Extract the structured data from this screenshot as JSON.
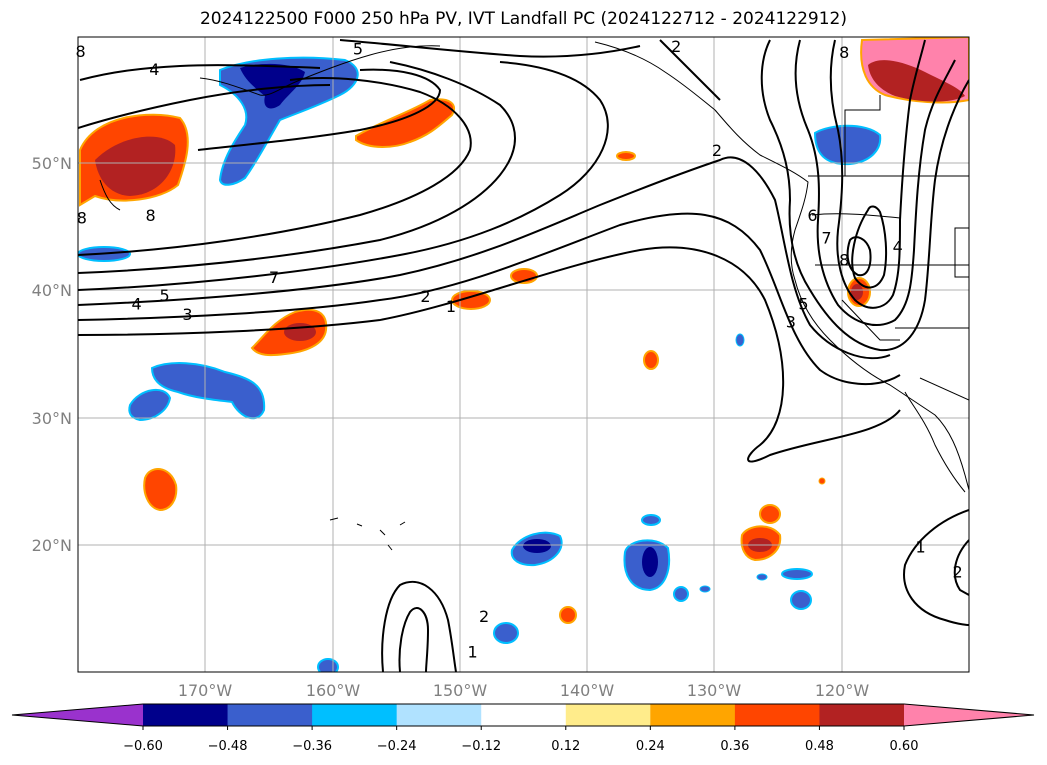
{
  "title": "2024122500 F000 250 hPa PV, IVT Landfall PC (2024122712 - 2024122912)",
  "map": {
    "projection": "PlateCarree",
    "lon_range": [
      -180,
      -110
    ],
    "lat_range": [
      10,
      60
    ],
    "grid": true,
    "lat_ticks": [
      {
        "value": 50,
        "label": "50°N"
      },
      {
        "value": 40,
        "label": "40°N"
      },
      {
        "value": 30,
        "label": "30°N"
      },
      {
        "value": 20,
        "label": "20°N"
      }
    ],
    "lon_ticks": [
      {
        "value": -170,
        "label": "170°W"
      },
      {
        "value": -160,
        "label": "160°W"
      },
      {
        "value": -150,
        "label": "150°W"
      },
      {
        "value": -140,
        "label": "140°W"
      },
      {
        "value": -130,
        "label": "130°W"
      },
      {
        "value": -120,
        "label": "120°W"
      }
    ]
  },
  "colorbar": {
    "orientation": "horizontal",
    "extend": "both",
    "levels": [
      -0.6,
      -0.48,
      -0.36,
      -0.24,
      -0.12,
      0.12,
      0.24,
      0.36,
      0.48,
      0.6
    ],
    "tick_labels": [
      "−0.60",
      "−0.48",
      "−0.36",
      "−0.24",
      "−0.12",
      "0.12",
      "0.24",
      "0.36",
      "0.48",
      "0.60"
    ],
    "colors": [
      "#9a32cd",
      "#00008b",
      "#3a5fcd",
      "#00bfff",
      "#b0e2ff",
      "#ffffff",
      "#ffec8b",
      "#ffa500",
      "#ff4500",
      "#b22222",
      "#ff82ab"
    ]
  },
  "contour_labels": [
    {
      "text": "4",
      "lon": -174,
      "lat": 57.5
    },
    {
      "text": "5",
      "lon": -158,
      "lat": 59.1
    },
    {
      "text": "2",
      "lon": -133,
      "lat": 59.3
    },
    {
      "text": "8",
      "lon": -179.8,
      "lat": 58.9
    },
    {
      "text": "7",
      "lon": -164.6,
      "lat": 41.1
    },
    {
      "text": "4",
      "lon": -175.4,
      "lat": 39.0
    },
    {
      "text": "5",
      "lon": -173.2,
      "lat": 39.7
    },
    {
      "text": "3",
      "lon": -171.4,
      "lat": 38.2
    },
    {
      "text": "2",
      "lon": -152.7,
      "lat": 39.6
    },
    {
      "text": "1",
      "lon": -150.7,
      "lat": 38.8
    },
    {
      "text": "2",
      "lon": -129.8,
      "lat": 51.1
    },
    {
      "text": "6",
      "lon": -122.3,
      "lat": 46.0
    },
    {
      "text": "7",
      "lon": -121.2,
      "lat": 44.2
    },
    {
      "text": "8",
      "lon": -119.8,
      "lat": 42.5
    },
    {
      "text": "5",
      "lon": -123.0,
      "lat": 39.0
    },
    {
      "text": "3",
      "lon": -124.0,
      "lat": 37.6
    },
    {
      "text": "4",
      "lon": -115.6,
      "lat": 43.5
    },
    {
      "text": "8",
      "lon": -119.8,
      "lat": 58.8
    },
    {
      "text": "2",
      "lon": -148.1,
      "lat": 14.4
    },
    {
      "text": "1",
      "lon": -149.0,
      "lat": 11.6
    },
    {
      "text": "1",
      "lon": -113.8,
      "lat": 19.9
    },
    {
      "text": "2",
      "lon": -110.9,
      "lat": 17.9
    },
    {
      "text": "8",
      "lon": -179.7,
      "lat": 45.8
    },
    {
      "text": "8",
      "lon": -174.3,
      "lat": 46.0
    }
  ]
}
